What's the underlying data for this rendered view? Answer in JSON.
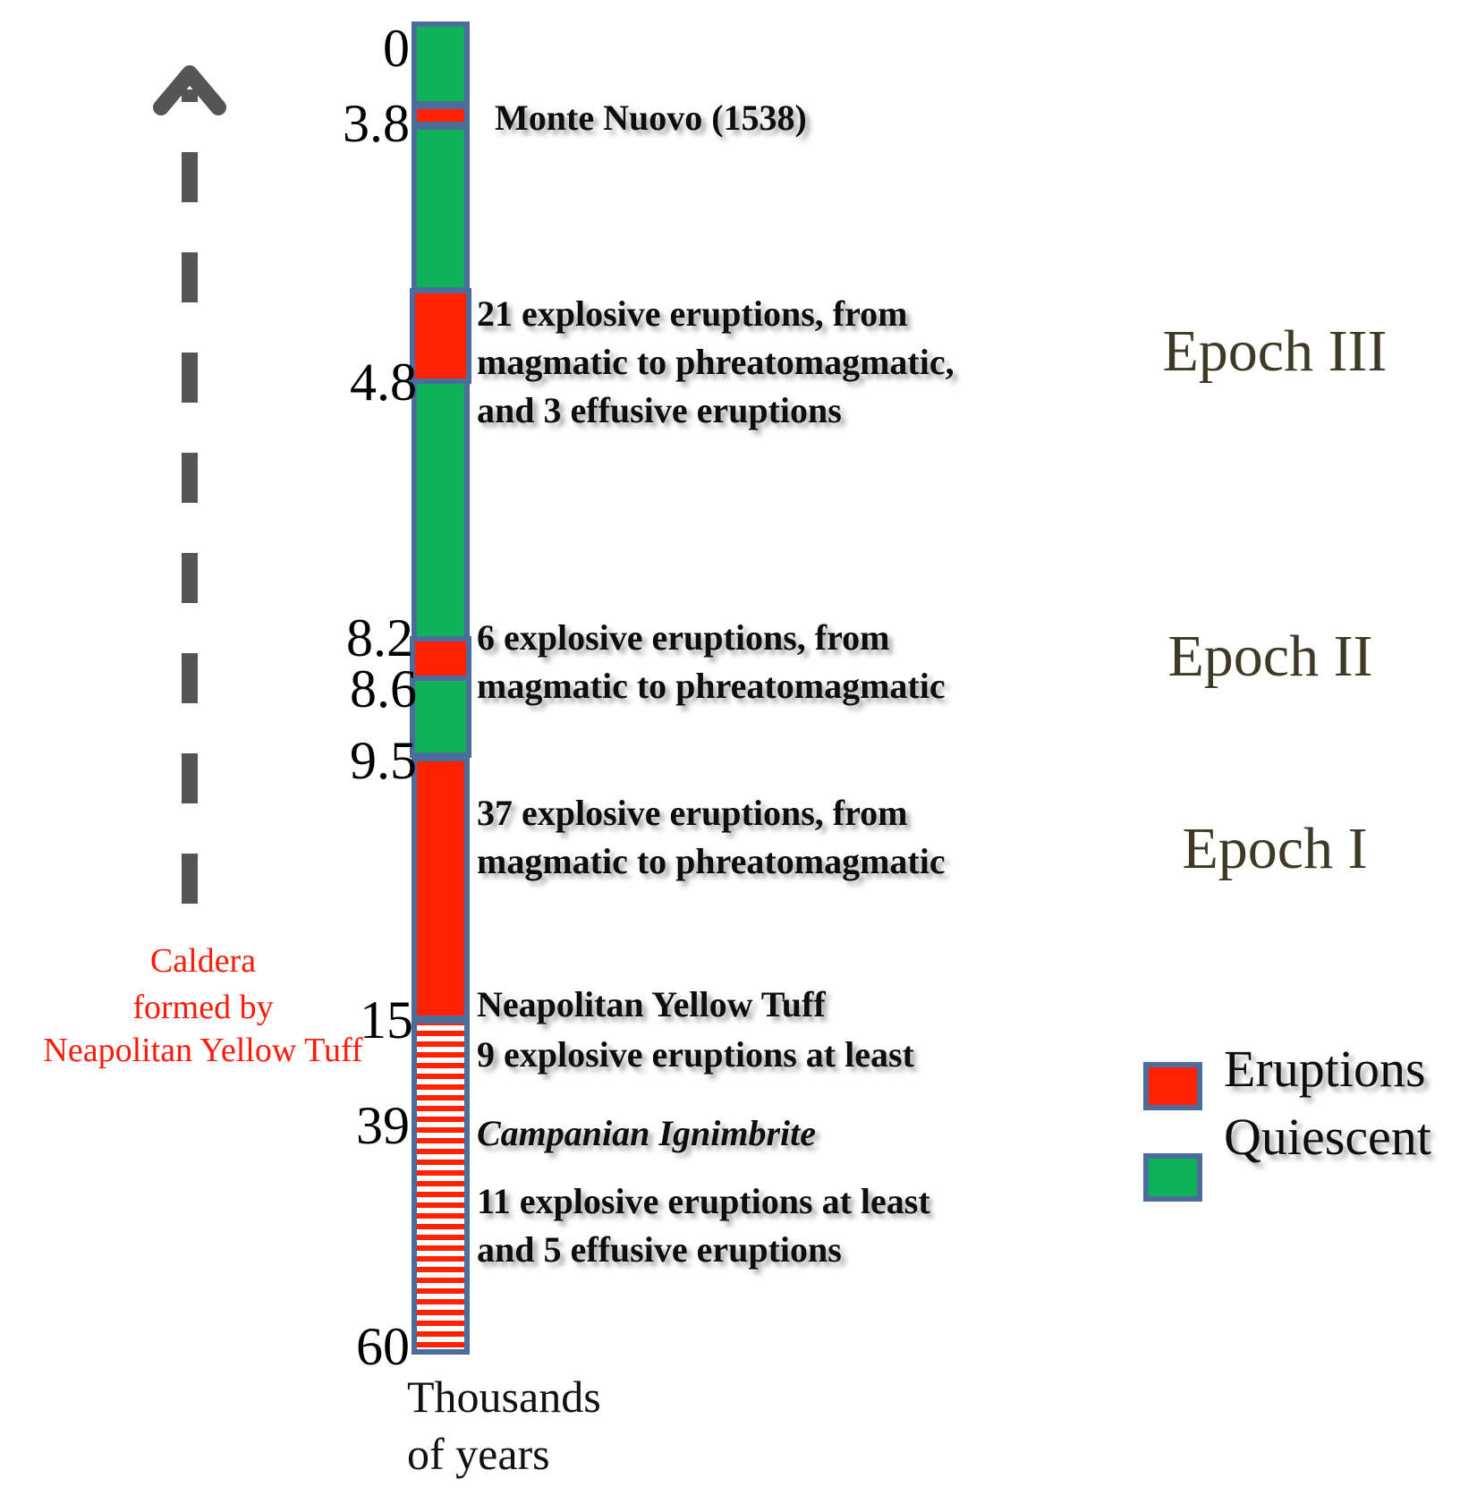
{
  "ticks": [
    "0",
    "3.8",
    "4.8",
    "8.2",
    "8.6",
    "9.5",
    "15",
    "39",
    "60"
  ],
  "unit_label": [
    "Thousands",
    "of years"
  ],
  "events": {
    "monte_nuovo": "Monte Nuovo (1538)",
    "epoch3": [
      "21 explosive eruptions, from",
      "magmatic to phreatomagmatic,",
      "and 3 effusive eruptions"
    ],
    "epoch2": [
      "6 explosive eruptions, from",
      "magmatic to phreatomagmatic"
    ],
    "epoch1": [
      "37 explosive eruptions, from",
      "magmatic to phreatomagmatic"
    ],
    "nyt": "Neapolitan Yellow Tuff",
    "nyt_nine": "9 explosive eruptions at least",
    "campanian": "Campanian Ignimbrite",
    "older": [
      "11 explosive eruptions at least",
      "and 5 effusive eruptions"
    ]
  },
  "epochs": {
    "iii": "Epoch III",
    "ii": "Epoch II",
    "i": "Epoch I"
  },
  "caldera": [
    "Caldera",
    "formed by",
    "Neapolitan Yellow Tuff"
  ],
  "legend": {
    "eruptions": "Eruptions",
    "quiescent": "Quiescent"
  },
  "colors": {
    "eruption": "#ff2200",
    "quiescent": "#0db259",
    "border": "#4a6d9c",
    "arrow": "#555555"
  },
  "icons": {
    "arrow": "up-arrow-icon"
  }
}
